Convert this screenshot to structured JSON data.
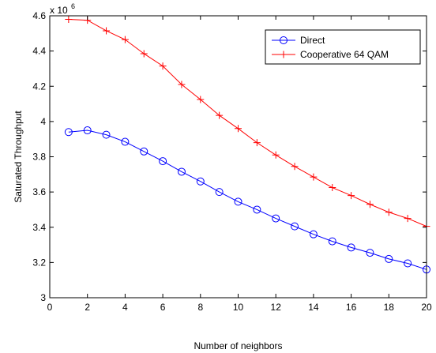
{
  "chart_data": {
    "type": "line",
    "title": "",
    "xlabel": "Number of neighbors",
    "ylabel": "Saturated Throughput",
    "y_multiplier_label": "x 10",
    "y_multiplier_exponent": "6",
    "xlim": [
      0,
      20
    ],
    "ylim": [
      3.0,
      4.6
    ],
    "x_ticks": [
      "0",
      "2",
      "4",
      "6",
      "8",
      "10",
      "12",
      "14",
      "16",
      "18",
      "20"
    ],
    "y_ticks": [
      "3",
      "3.2",
      "3.4",
      "3.6",
      "3.8",
      "4",
      "4.2",
      "4.4",
      "4.6"
    ],
    "grid": false,
    "legend_position": "top-right",
    "x": [
      1,
      2,
      3,
      4,
      5,
      6,
      7,
      8,
      9,
      10,
      11,
      12,
      13,
      14,
      15,
      16,
      17,
      18,
      19,
      20
    ],
    "series": [
      {
        "name": "Direct",
        "color": "#0000ff",
        "marker": "circle",
        "values": [
          3.94,
          3.95,
          3.925,
          3.885,
          3.83,
          3.775,
          3.715,
          3.66,
          3.6,
          3.545,
          3.5,
          3.45,
          3.405,
          3.36,
          3.32,
          3.285,
          3.255,
          3.22,
          3.195,
          3.16
        ]
      },
      {
        "name": "Cooperative 64 QAM",
        "color": "#ff0000",
        "marker": "plus",
        "values": [
          4.58,
          4.575,
          4.515,
          4.465,
          4.385,
          4.315,
          4.21,
          4.125,
          4.035,
          3.96,
          3.88,
          3.81,
          3.745,
          3.685,
          3.625,
          3.58,
          3.53,
          3.485,
          3.45,
          3.405
        ]
      }
    ]
  }
}
